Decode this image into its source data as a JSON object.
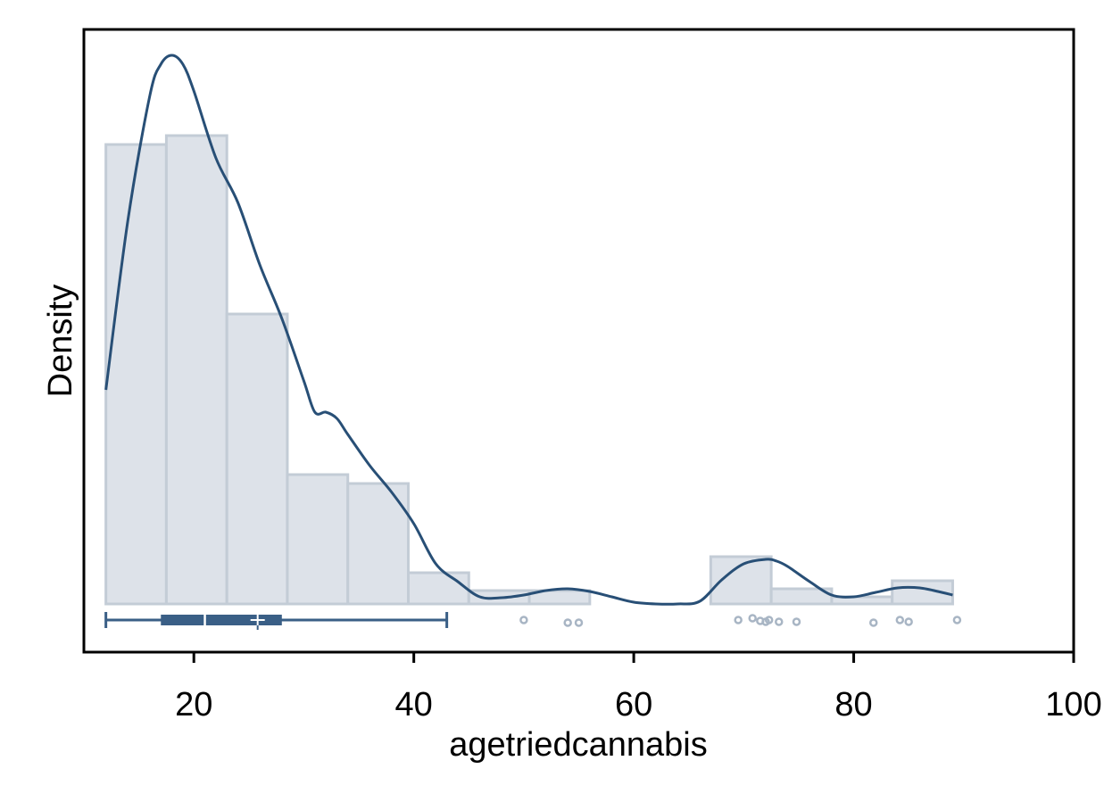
{
  "chart_data": {
    "type": "histogram",
    "xlabel": "agetriedcannabis",
    "ylabel": "Density",
    "xlim": [
      10,
      100
    ],
    "xticks": [
      "20",
      "40",
      "60",
      "80",
      "100"
    ],
    "yticks_shown": false,
    "histogram": {
      "bin_edges": [
        12,
        17.5,
        23,
        28.5,
        34,
        39.5,
        45,
        50.5,
        56,
        61.5,
        67,
        72.5,
        78,
        83.5,
        89
      ],
      "density": [
        0.0515,
        0.0525,
        0.0325,
        0.0145,
        0.0135,
        0.0035,
        0.0015,
        0.0015,
        0.0,
        0.0,
        0.0053,
        0.0017,
        0.0008,
        0.0026
      ]
    },
    "kde": {
      "x": [
        12,
        14,
        16,
        17,
        18,
        19,
        20,
        22,
        24,
        26,
        28,
        30,
        31,
        32,
        33,
        34,
        36,
        38,
        40,
        42,
        44,
        46,
        48,
        50,
        52,
        54,
        56,
        58,
        60,
        62,
        64,
        66,
        68,
        70,
        72,
        73,
        74,
        76,
        78,
        80,
        82,
        84,
        86,
        88,
        89
      ],
      "y": [
        0.024,
        0.043,
        0.057,
        0.0605,
        0.0615,
        0.0605,
        0.0575,
        0.05,
        0.045,
        0.038,
        0.032,
        0.025,
        0.0215,
        0.0215,
        0.0208,
        0.019,
        0.0155,
        0.0125,
        0.009,
        0.0045,
        0.0025,
        0.0008,
        0.0007,
        0.001,
        0.0015,
        0.0017,
        0.0014,
        0.0008,
        0.0002,
        0.0,
        0.0,
        0.0003,
        0.0027,
        0.0045,
        0.005,
        0.0048,
        0.0042,
        0.0025,
        0.001,
        0.0008,
        0.0013,
        0.0018,
        0.0018,
        0.0013,
        0.001
      ]
    },
    "boxplot": {
      "whisker_low": 12,
      "q1": 17,
      "median": 21,
      "mean": 25.8,
      "q3": 28,
      "whisker_high": 43,
      "outliers": [
        50,
        54,
        55,
        69.5,
        70.8,
        71.5,
        72,
        72.3,
        73.2,
        74.8,
        81.8,
        84.2,
        85,
        89.4
      ]
    },
    "colors": {
      "bar_fill": "#dde2e9",
      "bar_edge": "#c3ccd6",
      "kde_line": "#284f76",
      "box": "#3a5f86",
      "outlier": "#a8b5c4"
    }
  }
}
